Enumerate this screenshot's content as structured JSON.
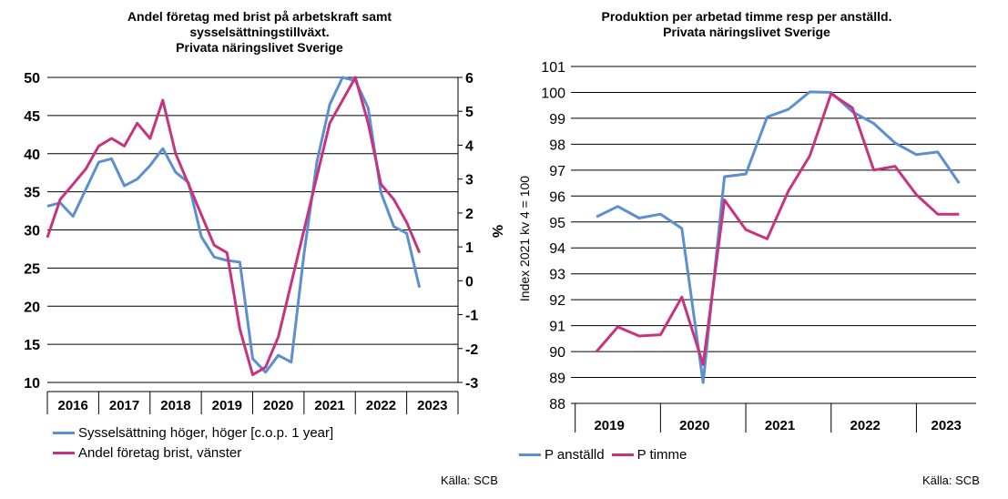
{
  "chart_data": [
    {
      "type": "line",
      "title": "Andel företag med brist på arbetskraft samt\nsysselsättningstillväxt.\nPrivata näringslivet Sverige",
      "categories": [
        "2016",
        "2017",
        "2018",
        "2019",
        "2020",
        "2021",
        "2022",
        "2023"
      ],
      "y_left": {
        "min": 10,
        "max": 50,
        "ticks": [
          "10",
          "15",
          "20",
          "25",
          "30",
          "35",
          "40",
          "45",
          "50"
        ]
      },
      "y_right": {
        "min": -3,
        "max": 6,
        "label": "%",
        "ticks": [
          "-3",
          "-2",
          "-1",
          "0",
          "1",
          "2",
          "3",
          "4",
          "5",
          "6"
        ]
      },
      "grid": true,
      "legend_position": "bottom-left",
      "series": [
        {
          "name": "Sysselsättning höger, höger [c.o.p. 1 year]",
          "axis": "right",
          "color": "#5b8fd0",
          "x": [
            2016.0,
            2016.25,
            2016.5,
            2016.75,
            2017.0,
            2017.25,
            2017.5,
            2017.75,
            2018.0,
            2018.25,
            2018.5,
            2018.75,
            2019.0,
            2019.25,
            2019.5,
            2019.75,
            2020.0,
            2020.25,
            2020.5,
            2020.75,
            2021.0,
            2021.25,
            2021.5,
            2021.75,
            2022.0,
            2022.25,
            2022.5,
            2022.75,
            2023.0,
            2023.25
          ],
          "values": [
            2.2,
            2.3,
            1.9,
            2.7,
            3.5,
            3.6,
            2.8,
            3.0,
            3.4,
            3.9,
            3.2,
            2.9,
            1.3,
            0.7,
            0.6,
            0.55,
            -2.3,
            -2.7,
            -2.2,
            -2.4,
            0.8,
            3.5,
            5.2,
            6.0,
            5.9,
            5.1,
            2.6,
            1.6,
            1.4,
            -0.2
          ]
        },
        {
          "name": "Andel företag brist, vänster",
          "axis": "left",
          "color": "#c7337f",
          "x": [
            2016.0,
            2016.25,
            2016.5,
            2016.75,
            2017.0,
            2017.25,
            2017.5,
            2017.75,
            2018.0,
            2018.25,
            2018.5,
            2018.75,
            2019.0,
            2019.25,
            2019.5,
            2019.75,
            2020.0,
            2020.25,
            2020.5,
            2020.75,
            2021.0,
            2021.25,
            2021.5,
            2021.75,
            2022.0,
            2022.25,
            2022.5,
            2022.75,
            2023.0,
            2023.25
          ],
          "values": [
            29,
            34,
            36,
            38,
            41,
            42,
            41,
            44,
            42,
            47,
            40,
            36,
            32,
            28,
            27,
            17,
            11,
            12,
            16,
            23,
            30,
            37,
            44,
            47,
            50,
            44,
            36,
            34,
            31,
            27
          ]
        }
      ],
      "source": "Källa: SCB"
    },
    {
      "type": "line",
      "title": "Produktion per arbetad timme resp per anställd.\nPrivata näringslivet Sverige",
      "categories": [
        "2019",
        "2020",
        "2021",
        "2022",
        "2023"
      ],
      "ylabel": "Index 2021 kv 4 = 100",
      "ylim": [
        88,
        101
      ],
      "yticks": [
        "88",
        "89",
        "90",
        "91",
        "92",
        "93",
        "94",
        "95",
        "96",
        "97",
        "98",
        "99",
        "100",
        "101"
      ],
      "grid": true,
      "legend_position": "bottom-left",
      "series": [
        {
          "name": "P anställd",
          "color": "#5b8fd0",
          "x": [
            2019.0,
            2019.25,
            2019.5,
            2019.75,
            2020.0,
            2020.25,
            2020.5,
            2020.75,
            2021.0,
            2021.25,
            2021.5,
            2021.75,
            2022.0,
            2022.25,
            2022.5,
            2022.75,
            2023.0,
            2023.25
          ],
          "values": [
            95.2,
            95.6,
            95.15,
            95.3,
            94.75,
            88.8,
            96.75,
            96.85,
            99.05,
            99.35,
            100.02,
            100.0,
            99.25,
            98.8,
            98.05,
            97.6,
            97.7,
            96.5
          ]
        },
        {
          "name": "P timme",
          "color": "#c7337f",
          "x": [
            2019.0,
            2019.25,
            2019.5,
            2019.75,
            2020.0,
            2020.25,
            2020.5,
            2020.75,
            2021.0,
            2021.25,
            2021.5,
            2021.75,
            2022.0,
            2022.25,
            2022.5,
            2022.75,
            2023.0,
            2023.25
          ],
          "values": [
            90.0,
            90.95,
            90.6,
            90.65,
            92.1,
            89.5,
            95.85,
            94.7,
            94.35,
            96.2,
            97.55,
            99.95,
            99.4,
            97.0,
            97.15,
            96.05,
            95.3,
            95.3
          ]
        }
      ],
      "source": "Källa: SCB"
    }
  ]
}
